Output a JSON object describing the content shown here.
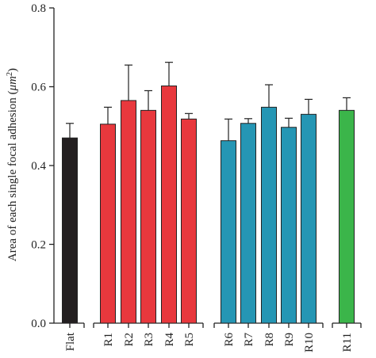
{
  "chart_data": {
    "type": "bar",
    "title": "",
    "xlabel": "",
    "ylabel_prefix": "Area of each single focal adhesion (",
    "ylabel_unit": "μm",
    "ylabel_sup": "2",
    "ylabel_suffix": ")",
    "ylim": [
      0,
      0.8
    ],
    "yticks": [
      "0.0",
      "0.2",
      "0.4",
      "0.6",
      "0.8"
    ],
    "grid": false,
    "legend": "none",
    "groups": [
      {
        "name": "flat",
        "color": "#231f20",
        "categories": [
          "Flat"
        ]
      },
      {
        "name": "red",
        "color": "#e8383d",
        "categories": [
          "R1",
          "R2",
          "R3",
          "R4",
          "R5"
        ]
      },
      {
        "name": "blue",
        "color": "#2596b4",
        "categories": [
          "R6",
          "R7",
          "R8",
          "R9",
          "R10"
        ]
      },
      {
        "name": "green",
        "color": "#3bb54a",
        "categories": [
          "R11"
        ]
      }
    ],
    "categories": [
      "Flat",
      "R1",
      "R2",
      "R3",
      "R4",
      "R5",
      "R6",
      "R7",
      "R8",
      "R9",
      "R10",
      "R11"
    ],
    "values": [
      0.47,
      0.505,
      0.565,
      0.54,
      0.602,
      0.518,
      0.463,
      0.507,
      0.548,
      0.497,
      0.53,
      0.54
    ],
    "errors": [
      0.037,
      0.043,
      0.09,
      0.05,
      0.06,
      0.014,
      0.055,
      0.012,
      0.057,
      0.023,
      0.038,
      0.032
    ]
  }
}
